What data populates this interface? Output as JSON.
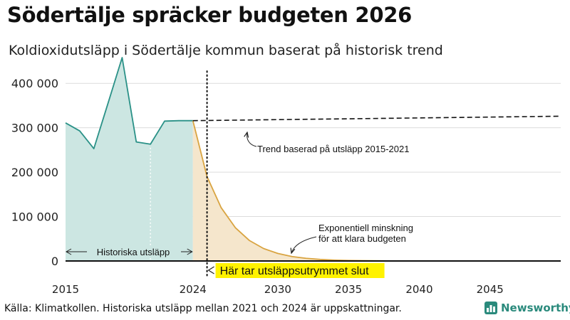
{
  "title": "Södertälje spräcker budgeten 2026",
  "subtitle": "Koldioxidutsläpp i Södertälje kommun baserat på historisk trend",
  "source": "Källa: Klimatkollen. Historiska utsläpp mellan 2021 och 2024 är uppskattningar.",
  "brand": {
    "name": "Newsworthy",
    "color": "#2a8a7c"
  },
  "colors": {
    "historical_line": "#2a9187",
    "historical_fill": "#cce6e2",
    "projection_line": "#d9a441",
    "projection_fill": "#f5e6cc",
    "highlight": "#fff200"
  },
  "chart_data": {
    "type": "area",
    "x_range": [
      2015,
      2050
    ],
    "ylim": [
      0,
      450000
    ],
    "y_ticks": [
      0,
      100000,
      200000,
      300000,
      400000
    ],
    "y_tick_labels": [
      "0",
      "100 000",
      "200 000",
      "300 000",
      "400 000"
    ],
    "x_ticks": [
      2015,
      2024,
      2030,
      2035,
      2040,
      2045
    ],
    "x_tick_labels": [
      "2015",
      "2024",
      "2030",
      "2035",
      "2040",
      "2045"
    ],
    "series": [
      {
        "name": "Historiska utsläpp",
        "x": [
          2015,
          2016,
          2017,
          2018,
          2019,
          2020,
          2021,
          2022,
          2023,
          2024
        ],
        "values": [
          311000,
          293000,
          253000,
          355000,
          458000,
          268000,
          263000,
          315000,
          316000,
          316000
        ]
      },
      {
        "name": "Exponentiell minskning",
        "x": [
          2024,
          2025,
          2026,
          2027,
          2028,
          2029,
          2030,
          2031,
          2032,
          2033,
          2034,
          2035,
          2036,
          2038,
          2040,
          2045,
          2050
        ],
        "values": [
          316000,
          190000,
          120000,
          75000,
          46000,
          28000,
          17000,
          10000,
          6000,
          3500,
          2000,
          1200,
          700,
          250,
          90,
          10,
          0
        ]
      },
      {
        "name": "Trend baserad på utsläpp 2015-2021",
        "x": [
          2024,
          2050
        ],
        "values": [
          316000,
          326000
        ]
      }
    ],
    "annotations": {
      "trend": "Trend baserad på utsläpp 2015-2021",
      "expo_line1": "Exponentiell minskning",
      "expo_line2": "för att klara budgeten",
      "historic": "Historiska utsläpp",
      "budget": "Här tar utsläppsutrymmet slut",
      "budget_year": 2025,
      "dotted_marker_year": 2021
    }
  }
}
